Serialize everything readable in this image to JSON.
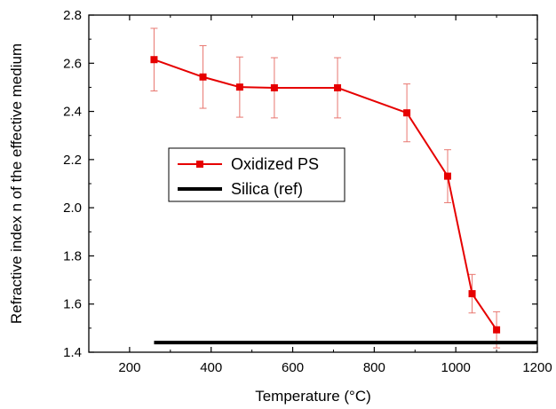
{
  "chart_data": {
    "type": "line",
    "xlabel": "Temperature (°C)",
    "ylabel": "Refractive index n of the effective medium",
    "xlim": [
      100,
      1200
    ],
    "ylim": [
      1.4,
      2.8
    ],
    "xticks": [
      200,
      400,
      600,
      800,
      1000,
      1200
    ],
    "yticks": [
      1.4,
      1.6,
      1.8,
      2.0,
      2.2,
      2.4,
      2.6,
      2.8
    ],
    "xtick_labels": [
      "200",
      "400",
      "600",
      "800",
      "1000",
      "1200"
    ],
    "ytick_labels": [
      "1.4",
      "1.6",
      "1.8",
      "2.0",
      "2.2",
      "2.4",
      "2.6",
      "2.8"
    ],
    "grid": false,
    "legend_position": "center-left",
    "series": [
      {
        "name": "Oxidized PS",
        "color": "#e60000",
        "marker": "square",
        "x": [
          260,
          380,
          470,
          555,
          710,
          880,
          980,
          1040,
          1100
        ],
        "y": [
          2.615,
          2.543,
          2.501,
          2.498,
          2.498,
          2.394,
          2.131,
          1.643,
          1.493
        ],
        "error": [
          0.13,
          0.13,
          0.125,
          0.125,
          0.125,
          0.12,
          0.11,
          0.08,
          0.075
        ]
      },
      {
        "name": "Silica (ref)",
        "color": "#000000",
        "marker": "none",
        "x": [
          260,
          1200
        ],
        "y": [
          1.44,
          1.44
        ]
      }
    ]
  }
}
